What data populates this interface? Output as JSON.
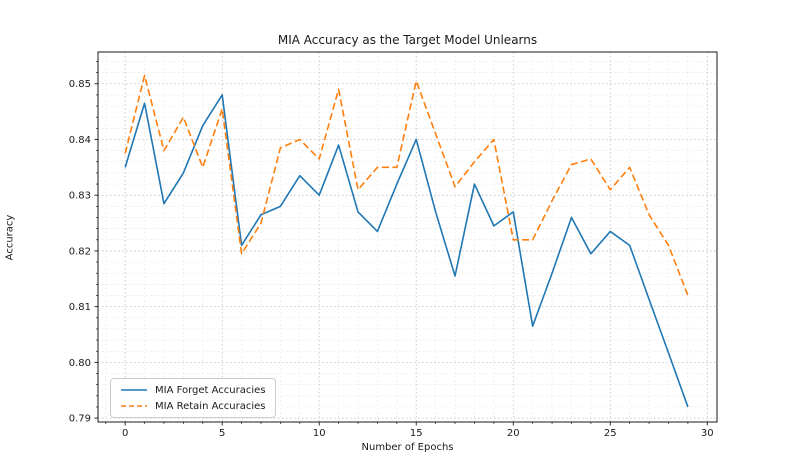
{
  "chart_data": {
    "type": "line",
    "title": "MIA Accuracy as the Target Model Unlearns",
    "xlabel": "Number of Epochs",
    "ylabel": "Accuracy",
    "x": [
      0,
      1,
      2,
      3,
      4,
      5,
      6,
      7,
      8,
      9,
      10,
      11,
      12,
      13,
      14,
      15,
      16,
      17,
      18,
      19,
      20,
      21,
      22,
      23,
      24,
      25,
      26,
      27,
      28,
      29
    ],
    "series": [
      {
        "name": "MIA Forget Accuracies",
        "color": "#1f77b4",
        "style": "solid",
        "values": [
          0.835,
          0.8465,
          0.8285,
          0.834,
          0.8425,
          0.848,
          0.821,
          0.8265,
          0.828,
          0.8335,
          0.83,
          0.839,
          0.827,
          0.8235,
          0.832,
          0.84,
          0.827,
          0.8155,
          0.832,
          0.8245,
          0.827,
          0.8065,
          0.816,
          0.826,
          0.8195,
          0.8235,
          0.821,
          0.8113,
          0.8017,
          0.792
        ]
      },
      {
        "name": "MIA Retain Accuracies",
        "color": "#ff7f0e",
        "style": "dashed",
        "values": [
          0.8375,
          0.8515,
          0.838,
          0.844,
          0.835,
          0.8455,
          0.8195,
          0.825,
          0.8385,
          0.84,
          0.8365,
          0.849,
          0.831,
          0.835,
          0.835,
          0.8505,
          0.841,
          0.8315,
          0.836,
          0.84,
          0.822,
          0.822,
          0.829,
          0.8355,
          0.8365,
          0.831,
          0.835,
          0.8265,
          0.821,
          0.812
        ]
      }
    ],
    "xlim": [
      -1.4,
      30.5
    ],
    "ylim": [
      0.7893,
      0.8557
    ],
    "xticks": [
      0,
      5,
      10,
      15,
      20,
      25,
      30
    ],
    "xtick_labels": [
      "0",
      "5",
      "10",
      "15",
      "20",
      "25",
      "30"
    ],
    "yticks": [
      0.79,
      0.8,
      0.81,
      0.82,
      0.83,
      0.84,
      0.85
    ],
    "ytick_labels": [
      "0.79",
      "0.80",
      "0.81",
      "0.82",
      "0.83",
      "0.84",
      "0.85"
    ],
    "x_minor_step": 1,
    "y_minor_step": 0.002,
    "grid": true,
    "legend_position": "lower left",
    "grid_major_color": "#bdbdbd",
    "grid_minor_color": "#e3e3e3",
    "spine_color": "#1a1a1a"
  }
}
